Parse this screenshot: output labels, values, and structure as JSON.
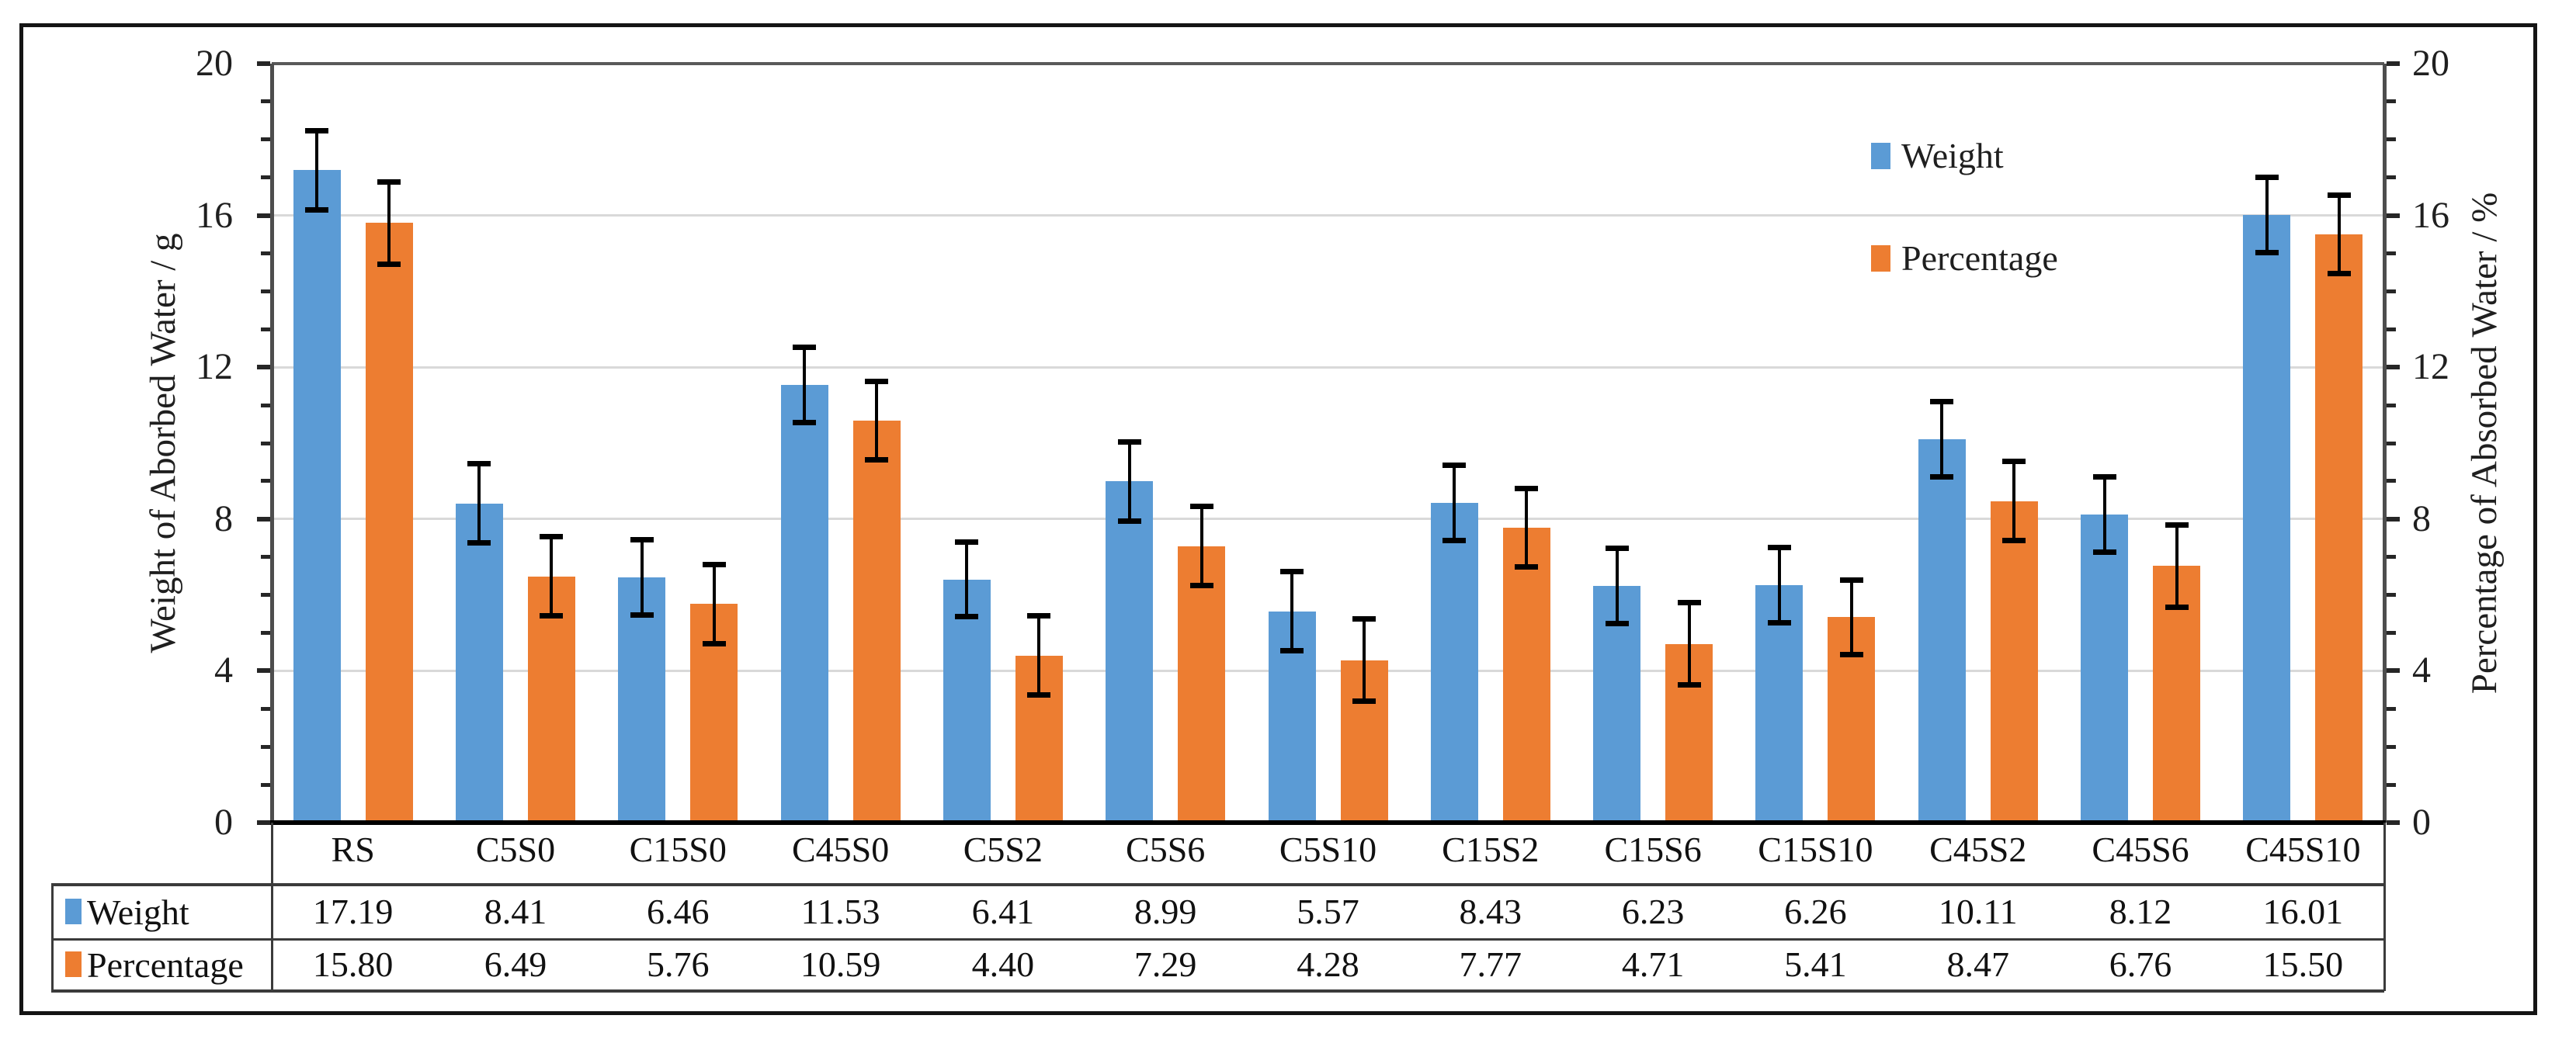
{
  "chart_data": {
    "type": "bar",
    "title": "",
    "categories": [
      "RS",
      "C5S0",
      "C15S0",
      "C45S0",
      "C5S2",
      "C5S6",
      "C5S10",
      "C15S2",
      "C15S6",
      "C15S10",
      "C45S2",
      "C45S6",
      "C45S10"
    ],
    "series": [
      {
        "name": "Weight",
        "color": "#5B9BD5",
        "values": [
          17.19,
          8.41,
          6.46,
          11.53,
          6.41,
          8.99,
          5.57,
          8.43,
          6.23,
          6.26,
          10.11,
          8.12,
          16.01
        ],
        "errors": [
          1.05,
          1.05,
          1.0,
          1.0,
          1.0,
          1.05,
          1.05,
          1.0,
          1.0,
          1.0,
          1.0,
          1.0,
          1.0
        ]
      },
      {
        "name": "Percentage",
        "color": "#ED7D31",
        "values": [
          15.8,
          6.49,
          5.76,
          10.59,
          4.4,
          7.29,
          4.28,
          7.77,
          4.71,
          5.41,
          8.47,
          6.76,
          15.5
        ],
        "errors": [
          1.1,
          1.05,
          1.05,
          1.05,
          1.05,
          1.05,
          1.1,
          1.05,
          1.1,
          1.0,
          1.05,
          1.1,
          1.05
        ]
      }
    ],
    "axes": {
      "left_label": "Weight of Aborbed Water / g",
      "right_label": "Percentage of Absorbed Water / %",
      "ylim": [
        0,
        20
      ],
      "major_ticks": [
        0,
        4,
        8,
        12,
        16,
        20
      ],
      "minor_tick_step": 1,
      "grid": true
    },
    "legend": {
      "position": "inside-top-right"
    },
    "data_table": {
      "row_labels": [
        "Weight",
        "Percentage"
      ],
      "rows": [
        [
          "17.19",
          "8.41",
          "6.46",
          "11.53",
          "6.41",
          "8.99",
          "5.57",
          "8.43",
          "6.23",
          "6.26",
          "10.11",
          "8.12",
          "16.01"
        ],
        [
          "15.80",
          "6.49",
          "5.76",
          "10.59",
          "4.40",
          "7.29",
          "4.28",
          "7.77",
          "4.71",
          "5.41",
          "8.47",
          "6.76",
          "15.50"
        ]
      ]
    },
    "colors": {
      "weight_bar": "#5B9BD5",
      "percentage_bar": "#ED7D31",
      "gridline": "#D9D9D9",
      "axis_line": "#4d4d4d",
      "category_axis_line": "#000000",
      "error_bar": "#000000",
      "plot_top_border": "#595959",
      "table_line": "#3b3b3b",
      "outer_frame": "#141414"
    }
  }
}
